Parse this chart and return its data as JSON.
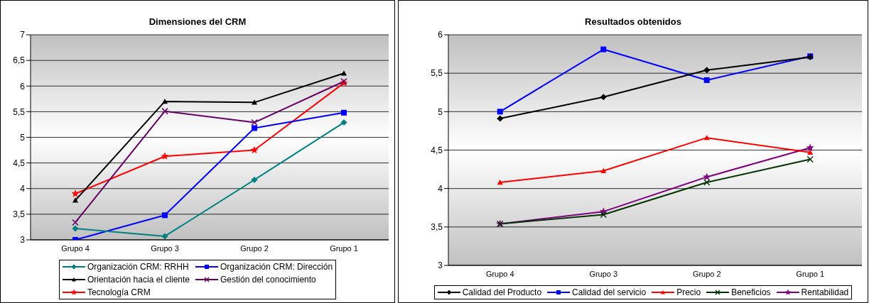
{
  "chart_data": [
    {
      "type": "line",
      "title": "Dimensiones del CRM",
      "categories": [
        "Grupo 4",
        "Grupo 3",
        "Grupo 2",
        "Grupo 1"
      ],
      "series": [
        {
          "name": "Organización CRM: RRHH",
          "color": "#008080",
          "marker": "diamond",
          "values": [
            3.22,
            3.07,
            4.17,
            5.29
          ]
        },
        {
          "name": "Organización CRM: Dirección",
          "color": "#0000ff",
          "marker": "square",
          "values": [
            3.0,
            3.48,
            5.18,
            5.48
          ]
        },
        {
          "name": "Orientación hacia el cliente",
          "color": "#000000",
          "marker": "triangle",
          "values": [
            3.77,
            5.7,
            5.68,
            6.25
          ]
        },
        {
          "name": "Gestión del conocimiento",
          "color": "#660066",
          "marker": "cross",
          "values": [
            3.34,
            5.51,
            5.29,
            6.09
          ]
        },
        {
          "name": "Tecnología CRM",
          "color": "#ff0000",
          "marker": "star",
          "values": [
            3.9,
            4.63,
            4.75,
            6.06
          ]
        }
      ],
      "ylim": [
        3,
        7
      ],
      "yticks": [
        3,
        {
          "value": 3.5,
          "label": "3,5"
        },
        4,
        {
          "value": 4.5,
          "label": "4,5"
        },
        5,
        {
          "value": 5.5,
          "label": "5,5"
        },
        6,
        {
          "value": 6.5,
          "label": "6,5"
        },
        7
      ],
      "grid": "y",
      "legend": "bottom",
      "line_style": "solid"
    },
    {
      "type": "line",
      "title": "Resultados obtenidos",
      "categories": [
        "Grupo 4",
        "Grupo 3",
        "Grupo 2",
        "Grupo 1"
      ],
      "series": [
        {
          "name": "Calidad del Producto",
          "color": "#000000",
          "marker": "diamond",
          "values": [
            4.91,
            5.19,
            5.54,
            5.71
          ]
        },
        {
          "name": "Calidad del servicio",
          "color": "#0000ff",
          "marker": "square",
          "values": [
            5.0,
            5.81,
            5.41,
            5.72
          ]
        },
        {
          "name": "Precio",
          "color": "#ff0000",
          "marker": "triangle",
          "values": [
            4.08,
            4.23,
            4.66,
            4.47
          ]
        },
        {
          "name": "Beneficios",
          "color": "#003300",
          "marker": "cross",
          "values": [
            3.54,
            3.66,
            4.08,
            4.38
          ]
        },
        {
          "name": "Rentabilidad",
          "color": "#800080",
          "marker": "star",
          "values": [
            3.54,
            3.7,
            4.15,
            4.53
          ]
        }
      ],
      "ylim": [
        3,
        6
      ],
      "yticks": [
        3,
        {
          "value": 3.5,
          "label": "3,5"
        },
        4,
        {
          "value": 4.5,
          "label": "4,5"
        },
        5,
        {
          "value": 5.5,
          "label": "5,5"
        },
        6
      ],
      "grid": "y",
      "legend": "bottom",
      "line_style": "solid"
    }
  ]
}
